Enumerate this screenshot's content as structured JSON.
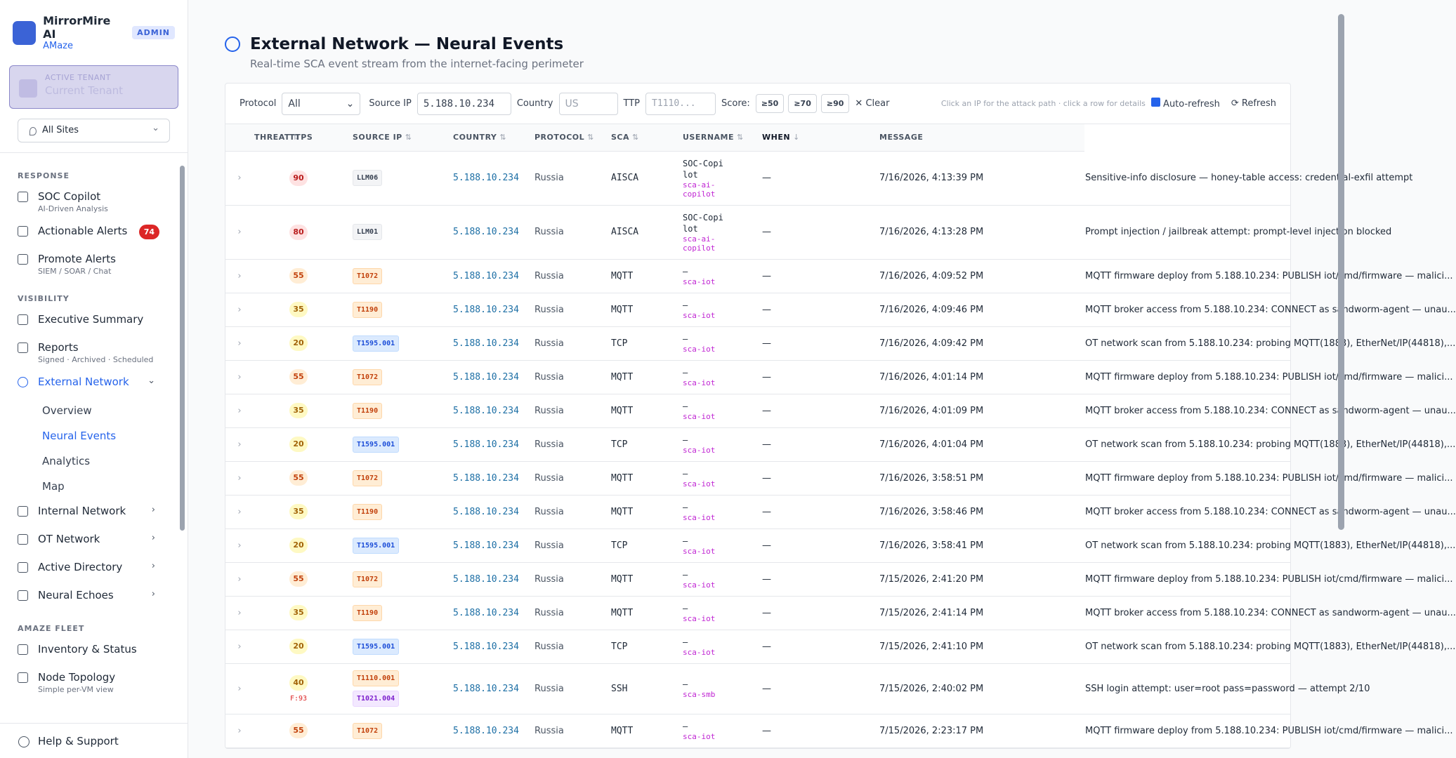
{
  "sidebar": {
    "brand": "MirrorMire AI",
    "brand_sub": "AMaze",
    "role": "ADMIN",
    "tenant_label": "ACTIVE TENANT",
    "tenant": "Current Tenant",
    "site": "All Sites",
    "sections": [
      {
        "title": "RESPONSE",
        "items": [
          {
            "label": "SOC Copilot",
            "sub": "AI-Driven Analysis"
          },
          {
            "label": "Actionable Alerts",
            "badge": 74
          },
          {
            "label": "Promote Alerts",
            "sub": "SIEM / SOAR / Chat"
          }
        ]
      },
      {
        "title": "VISIBILITY",
        "items": [
          {
            "label": "Executive Summary"
          },
          {
            "label": "Reports",
            "sub": "Signed · Archived · Scheduled"
          },
          {
            "label": "External Network",
            "active": true,
            "expanded": true,
            "children": [
              {
                "label": "Overview"
              },
              {
                "label": "Neural Events",
                "active": true
              },
              {
                "label": "Analytics"
              },
              {
                "label": "Map"
              }
            ]
          },
          {
            "label": "Internal Network",
            "expandable": true
          },
          {
            "label": "OT Network",
            "expandable": true
          },
          {
            "label": "Active Directory",
            "expandable": true
          },
          {
            "label": "Neural Echoes",
            "expandable": true
          }
        ]
      },
      {
        "title": "AMAZE FLEET",
        "items": [
          {
            "label": "Inventory & Status"
          },
          {
            "label": "Node Topology",
            "sub": "Simple per-VM view"
          }
        ]
      }
    ],
    "footer": "Help & Support"
  },
  "header": {
    "title": "External Network — Neural Events",
    "subtitle": "Real-time SCA event stream from the internet-facing perimeter"
  },
  "filters": {
    "protocol_label": "Protocol",
    "protocol": "All",
    "source_ip_label": "Source IP",
    "source_ip": "5.188.10.234",
    "country_label": "Country",
    "country_placeholder": "US",
    "ttp_label": "TTP",
    "ttp_placeholder": "T1110...",
    "score_label": "Score:",
    "score_buttons": [
      "≥50",
      "≥70",
      "≥90"
    ],
    "clear": "Clear",
    "hint": "Click an IP for the attack path · click a row for details",
    "auto_refresh": "Auto-refresh",
    "refresh": "Refresh"
  },
  "table": {
    "columns": [
      "THREAT",
      "TTPS",
      "SOURCE IP",
      "COUNTRY",
      "PROTOCOL",
      "SCA",
      "USERNAME",
      "WHEN",
      "MESSAGE"
    ],
    "sorted_column": 7,
    "rows": [
      {
        "threat": 90,
        "ttps": [
          {
            "label": "LLM06",
            "tone": "gray"
          }
        ],
        "ip": "5.188.10.234",
        "country": "Russia",
        "protocol": "AISCA",
        "sca": "SOC-Copilot",
        "sca_id": "sca-ai-copilot",
        "username": "—",
        "when": "7/16/2026, 4:13:39 PM",
        "message": "Sensitive-info disclosure — honey-table access: credential-exfil attempt"
      },
      {
        "threat": 80,
        "ttps": [
          {
            "label": "LLM01",
            "tone": "gray"
          }
        ],
        "ip": "5.188.10.234",
        "country": "Russia",
        "protocol": "AISCA",
        "sca": "SOC-Copilot",
        "sca_id": "sca-ai-copilot",
        "username": "—",
        "when": "7/16/2026, 4:13:28 PM",
        "message": "Prompt injection / jailbreak attempt: prompt-level injection blocked"
      },
      {
        "threat": 55,
        "ttps": [
          {
            "label": "T1072",
            "tone": "orange"
          }
        ],
        "ip": "5.188.10.234",
        "country": "Russia",
        "protocol": "MQTT",
        "sca": "—",
        "sca_id": "sca-iot",
        "username": "—",
        "when": "7/16/2026, 4:09:52 PM",
        "message": "MQTT firmware deploy from 5.188.10.234: PUBLISH iot/cmd/firmware — malici..."
      },
      {
        "threat": 35,
        "ttps": [
          {
            "label": "T1190",
            "tone": "orange"
          }
        ],
        "ip": "5.188.10.234",
        "country": "Russia",
        "protocol": "MQTT",
        "sca": "—",
        "sca_id": "sca-iot",
        "username": "—",
        "when": "7/16/2026, 4:09:46 PM",
        "message": "MQTT broker access from 5.188.10.234: CONNECT as sandworm-agent — unau..."
      },
      {
        "threat": 20,
        "ttps": [
          {
            "label": "T1595.001",
            "tone": "blue"
          }
        ],
        "ip": "5.188.10.234",
        "country": "Russia",
        "protocol": "TCP",
        "sca": "—",
        "sca_id": "sca-iot",
        "username": "—",
        "when": "7/16/2026, 4:09:42 PM",
        "message": "OT network scan from 5.188.10.234: probing MQTT(1883), EtherNet/IP(44818),..."
      },
      {
        "threat": 55,
        "ttps": [
          {
            "label": "T1072",
            "tone": "orange"
          }
        ],
        "ip": "5.188.10.234",
        "country": "Russia",
        "protocol": "MQTT",
        "sca": "—",
        "sca_id": "sca-iot",
        "username": "—",
        "when": "7/16/2026, 4:01:14 PM",
        "message": "MQTT firmware deploy from 5.188.10.234: PUBLISH iot/cmd/firmware — malici..."
      },
      {
        "threat": 35,
        "ttps": [
          {
            "label": "T1190",
            "tone": "orange"
          }
        ],
        "ip": "5.188.10.234",
        "country": "Russia",
        "protocol": "MQTT",
        "sca": "—",
        "sca_id": "sca-iot",
        "username": "—",
        "when": "7/16/2026, 4:01:09 PM",
        "message": "MQTT broker access from 5.188.10.234: CONNECT as sandworm-agent — unau..."
      },
      {
        "threat": 20,
        "ttps": [
          {
            "label": "T1595.001",
            "tone": "blue"
          }
        ],
        "ip": "5.188.10.234",
        "country": "Russia",
        "protocol": "TCP",
        "sca": "—",
        "sca_id": "sca-iot",
        "username": "—",
        "when": "7/16/2026, 4:01:04 PM",
        "message": "OT network scan from 5.188.10.234: probing MQTT(1883), EtherNet/IP(44818),..."
      },
      {
        "threat": 55,
        "ttps": [
          {
            "label": "T1072",
            "tone": "orange"
          }
        ],
        "ip": "5.188.10.234",
        "country": "Russia",
        "protocol": "MQTT",
        "sca": "—",
        "sca_id": "sca-iot",
        "username": "—",
        "when": "7/16/2026, 3:58:51 PM",
        "message": "MQTT firmware deploy from 5.188.10.234: PUBLISH iot/cmd/firmware — malici..."
      },
      {
        "threat": 35,
        "ttps": [
          {
            "label": "T1190",
            "tone": "orange"
          }
        ],
        "ip": "5.188.10.234",
        "country": "Russia",
        "protocol": "MQTT",
        "sca": "—",
        "sca_id": "sca-iot",
        "username": "—",
        "when": "7/16/2026, 3:58:46 PM",
        "message": "MQTT broker access from 5.188.10.234: CONNECT as sandworm-agent — unau..."
      },
      {
        "threat": 20,
        "ttps": [
          {
            "label": "T1595.001",
            "tone": "blue"
          }
        ],
        "ip": "5.188.10.234",
        "country": "Russia",
        "protocol": "TCP",
        "sca": "—",
        "sca_id": "sca-iot",
        "username": "—",
        "when": "7/16/2026, 3:58:41 PM",
        "message": "OT network scan from 5.188.10.234: probing MQTT(1883), EtherNet/IP(44818),..."
      },
      {
        "threat": 55,
        "ttps": [
          {
            "label": "T1072",
            "tone": "orange"
          }
        ],
        "ip": "5.188.10.234",
        "country": "Russia",
        "protocol": "MQTT",
        "sca": "—",
        "sca_id": "sca-iot",
        "username": "—",
        "when": "7/15/2026, 2:41:20 PM",
        "message": "MQTT firmware deploy from 5.188.10.234: PUBLISH iot/cmd/firmware — malici..."
      },
      {
        "threat": 35,
        "ttps": [
          {
            "label": "T1190",
            "tone": "orange"
          }
        ],
        "ip": "5.188.10.234",
        "country": "Russia",
        "protocol": "MQTT",
        "sca": "—",
        "sca_id": "sca-iot",
        "username": "—",
        "when": "7/15/2026, 2:41:14 PM",
        "message": "MQTT broker access from 5.188.10.234: CONNECT as sandworm-agent — unau..."
      },
      {
        "threat": 20,
        "ttps": [
          {
            "label": "T1595.001",
            "tone": "blue"
          }
        ],
        "ip": "5.188.10.234",
        "country": "Russia",
        "protocol": "TCP",
        "sca": "—",
        "sca_id": "sca-iot",
        "username": "—",
        "when": "7/15/2026, 2:41:10 PM",
        "message": "OT network scan from 5.188.10.234: probing MQTT(1883), EtherNet/IP(44818),..."
      },
      {
        "threat": 40,
        "threat_note": "F:93",
        "ttps": [
          {
            "label": "T1110.001",
            "tone": "orange"
          },
          {
            "label": "T1021.004",
            "tone": "purple"
          }
        ],
        "ip": "5.188.10.234",
        "country": "Russia",
        "protocol": "SSH",
        "sca": "—",
        "sca_id": "sca-smb",
        "username": "—",
        "when": "7/15/2026, 2:40:02 PM",
        "message": "SSH login attempt: user=root pass=password — attempt 2/10"
      },
      {
        "threat": 55,
        "ttps": [
          {
            "label": "T1072",
            "tone": "orange"
          }
        ],
        "ip": "5.188.10.234",
        "country": "Russia",
        "protocol": "MQTT",
        "sca": "—",
        "sca_id": "sca-iot",
        "username": "—",
        "when": "7/15/2026, 2:23:17 PM",
        "message": "MQTT firmware deploy from 5.188.10.234: PUBLISH iot/cmd/firmware — malici..."
      }
    ]
  }
}
